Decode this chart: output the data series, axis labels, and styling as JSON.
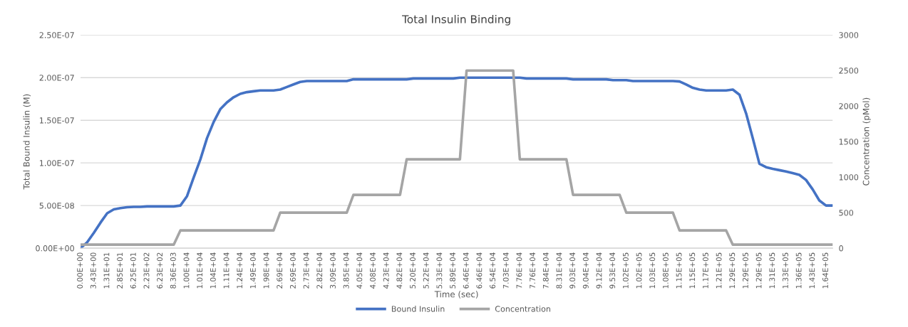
{
  "chart_data": {
    "type": "line",
    "title": "Total Insulin Binding",
    "xlabel": "Time (sec)",
    "ylabel": "Total Bound Insulin (M)",
    "y2label": "Concentration (pMol)",
    "categories": [
      "0.00E+00",
      null,
      "3.43E+00",
      null,
      "1.31E+01",
      null,
      "2.85E+01",
      null,
      "6.25E+01",
      null,
      "2.23E+02",
      null,
      "6.23E+02",
      null,
      "8.36E+03",
      null,
      "1.00E+04",
      null,
      "1.01E+04",
      null,
      "1.04E+04",
      null,
      "1.11E+04",
      null,
      "1.24E+04",
      null,
      "1.49E+04",
      null,
      "1.98E+04",
      null,
      "2.69E+04",
      null,
      "2.69E+04",
      null,
      "2.73E+04",
      null,
      "2.82E+04",
      null,
      "3.09E+04",
      null,
      "3.85E+04",
      null,
      "4.05E+04",
      null,
      "4.08E+04",
      null,
      "4.23E+04",
      null,
      "4.82E+04",
      null,
      "5.20E+04",
      null,
      "5.22E+04",
      null,
      "5.33E+04",
      null,
      "5.89E+04",
      null,
      "6.46E+04",
      null,
      "6.46E+04",
      null,
      "6.54E+04",
      null,
      "7.03E+04",
      null,
      "7.76E+04",
      null,
      "7.76E+04",
      null,
      "7.84E+04",
      null,
      "8.31E+04",
      null,
      "9.03E+04",
      null,
      "9.04E+04",
      null,
      "9.12E+04",
      null,
      "9.53E+04",
      null,
      "1.02E+05",
      null,
      "1.02E+05",
      null,
      "1.03E+05",
      null,
      "1.08E+05",
      null,
      "1.15E+05",
      null,
      "1.15E+05",
      null,
      "1.17E+05",
      null,
      "1.21E+05",
      null,
      "1.29E+05",
      null,
      "1.29E+05",
      null,
      "1.29E+05",
      null,
      "1.31E+05",
      null,
      "1.33E+05",
      null,
      "1.36E+05",
      null,
      "1.43E+05",
      null,
      "1.64E+05",
      null
    ],
    "series": [
      {
        "name": "Bound Insulin",
        "color": "#4472c4",
        "values": [
          0,
          7e-09,
          1.8e-08,
          3e-08,
          4.1e-08,
          4.55e-08,
          4.7e-08,
          4.8e-08,
          4.85e-08,
          4.85e-08,
          4.9e-08,
          4.9e-08,
          4.9e-08,
          4.9e-08,
          4.9e-08,
          5e-08,
          6.1e-08,
          8.3e-08,
          1.04e-07,
          1.29e-07,
          1.48e-07,
          1.63e-07,
          1.71e-07,
          1.77e-07,
          1.81e-07,
          1.83e-07,
          1.84e-07,
          1.85e-07,
          1.85e-07,
          1.85e-07,
          1.86e-07,
          1.89e-07,
          1.92e-07,
          1.95e-07,
          1.96e-07,
          1.96e-07,
          1.96e-07,
          1.96e-07,
          1.96e-07,
          1.96e-07,
          1.96e-07,
          1.98e-07,
          1.98e-07,
          1.98e-07,
          1.98e-07,
          1.98e-07,
          1.98e-07,
          1.98e-07,
          1.98e-07,
          1.98e-07,
          1.99e-07,
          1.99e-07,
          1.99e-07,
          1.99e-07,
          1.99e-07,
          1.99e-07,
          1.99e-07,
          2e-07,
          2e-07,
          2e-07,
          2e-07,
          2e-07,
          2e-07,
          2e-07,
          2e-07,
          2e-07,
          2e-07,
          1.99e-07,
          1.99e-07,
          1.99e-07,
          1.99e-07,
          1.99e-07,
          1.99e-07,
          1.99e-07,
          1.98e-07,
          1.98e-07,
          1.98e-07,
          1.98e-07,
          1.98e-07,
          1.98e-07,
          1.97e-07,
          1.97e-07,
          1.97e-07,
          1.96e-07,
          1.96e-07,
          1.96e-07,
          1.96e-07,
          1.96e-07,
          1.96e-07,
          1.96e-07,
          1.955e-07,
          1.92e-07,
          1.88e-07,
          1.86e-07,
          1.85e-07,
          1.85e-07,
          1.85e-07,
          1.85e-07,
          1.86e-07,
          1.8e-07,
          1.58e-07,
          1.29e-07,
          9.9e-08,
          9.5e-08,
          9.3e-08,
          9.15e-08,
          9e-08,
          8.8e-08,
          8.6e-08,
          8e-08,
          6.9e-08,
          5.6e-08,
          5e-08,
          5e-08
        ]
      },
      {
        "name": "Concentration",
        "color": "#a5a5a5",
        "axis": "y2",
        "values": [
          50,
          50,
          50,
          50,
          50,
          50,
          50,
          50,
          50,
          50,
          50,
          50,
          50,
          50,
          50,
          250,
          250,
          250,
          250,
          250,
          250,
          250,
          250,
          250,
          250,
          250,
          250,
          250,
          250,
          250,
          500,
          500,
          500,
          500,
          500,
          500,
          500,
          500,
          500,
          500,
          500,
          750,
          750,
          750,
          750,
          750,
          750,
          750,
          750,
          1250,
          1250,
          1250,
          1250,
          1250,
          1250,
          1250,
          1250,
          1250,
          2500,
          2500,
          2500,
          2500,
          2500,
          2500,
          2500,
          2500,
          1250,
          1250,
          1250,
          1250,
          1250,
          1250,
          1250,
          1250,
          750,
          750,
          750,
          750,
          750,
          750,
          750,
          750,
          500,
          500,
          500,
          500,
          500,
          500,
          500,
          500,
          250,
          250,
          250,
          250,
          250,
          250,
          250,
          250,
          50,
          50,
          50,
          50,
          50,
          50,
          50,
          50,
          50,
          50,
          50,
          50,
          50,
          50,
          50,
          50
        ]
      }
    ],
    "ylim": [
      0,
      2.5e-07
    ],
    "yticks": [
      {
        "value": 0,
        "label": "0.00E+00"
      },
      {
        "value": 5e-08,
        "label": "5.00E-08"
      },
      {
        "value": 1e-07,
        "label": "1.00E-07"
      },
      {
        "value": 1.5e-07,
        "label": "1.50E-07"
      },
      {
        "value": 2e-07,
        "label": "2.00E-07"
      },
      {
        "value": 2.5e-07,
        "label": "2.50E-07"
      }
    ],
    "y2lim": [
      0,
      3000
    ],
    "y2ticks": [
      0,
      500,
      1000,
      1500,
      2000,
      2500,
      3000
    ],
    "grid": "y",
    "legend": "bottom",
    "marker": "none",
    "line_style": "solid"
  }
}
